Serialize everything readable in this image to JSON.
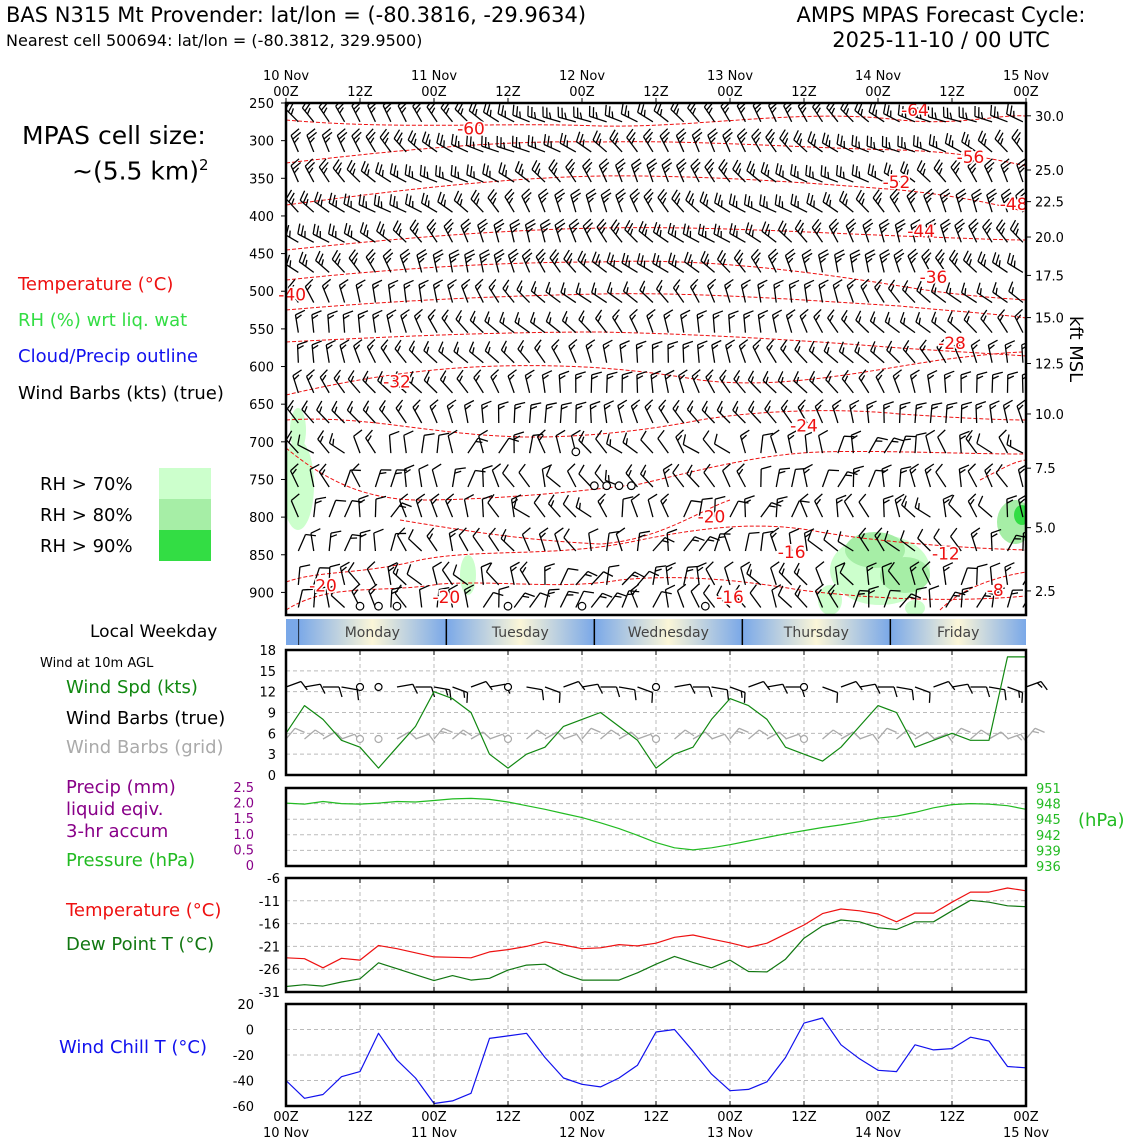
{
  "header": {
    "station_title": "BAS N315 Mt Provender: lat/lon = (-80.3816, -29.9634)",
    "cell_subtitle": "Nearest cell 500694: lat/lon = (-80.3812, 329.9500)",
    "cycle_line1": "AMPS MPAS Forecast Cycle:",
    "cycle_line2": "2025-11-10 / 00 UTC"
  },
  "legend": {
    "cell_size_label": "MPAS cell size:",
    "cell_size_value": "~(5.5 km)",
    "cell_size_exp": "2",
    "temperature": "Temperature (°C)",
    "rh": "RH (%) wrt liq. wat",
    "cloud": "Cloud/Precip outline",
    "wind_barbs": "Wind Barbs (kts) (true)",
    "rh_levels": [
      {
        "label": "RH > 70%",
        "color": "#ccffcc"
      },
      {
        "label": "RH > 80%",
        "color": "#a6eea6"
      },
      {
        "label": "RH > 90%",
        "color": "#33dd44"
      }
    ],
    "local_weekday": "Local Weekday",
    "wind_10m": "Wind at 10m AGL",
    "wind_spd": "Wind Spd (kts)",
    "wind_barbs_true": "Wind Barbs (true)",
    "wind_barbs_grid": "Wind Barbs (grid)",
    "precip_line1": "Precip (mm)",
    "precip_line2": "liquid eqiv.",
    "precip_line3": "3-hr accum",
    "pressure": "Pressure (hPa)",
    "temperature_ts": "Temperature (°C)",
    "dewpoint": "Dew Point T (°C)",
    "windchill": "Wind Chill T (°C)",
    "kft_label": "kft MSL",
    "hpa_label": "(hPa)"
  },
  "colors": {
    "temperature": "#ee1111",
    "rh": "#33dd44",
    "cloud": "#1111ee",
    "wind_spd": "#118811",
    "grid_barb": "#aaaaaa",
    "precip": "#880088",
    "pressure": "#22bb22",
    "dewpoint": "#117711",
    "windchill": "#1111ee"
  },
  "chart_data": [
    {
      "type": "cross-section",
      "name": "upper-air",
      "x_ticks": [
        {
          "top": "10 Nov",
          "bottom": "00Z"
        },
        {
          "top": "",
          "bottom": "12Z"
        },
        {
          "top": "11 Nov",
          "bottom": "00Z"
        },
        {
          "top": "",
          "bottom": "12Z"
        },
        {
          "top": "12 Nov",
          "bottom": "00Z"
        },
        {
          "top": "",
          "bottom": "12Z"
        },
        {
          "top": "13 Nov",
          "bottom": "00Z"
        },
        {
          "top": "",
          "bottom": "12Z"
        },
        {
          "top": "14 Nov",
          "bottom": "00Z"
        },
        {
          "top": "",
          "bottom": "12Z"
        },
        {
          "top": "15 Nov",
          "bottom": "00Z"
        }
      ],
      "x_range_hours": [
        0,
        120
      ],
      "y_range_hpa": [
        250,
        930
      ],
      "pressure_ticks": [
        "250",
        "300",
        "350",
        "400",
        "450",
        "500",
        "550",
        "600",
        "650",
        "700",
        "750",
        "800",
        "850",
        "900"
      ],
      "kft_ticks": [
        {
          "label": "30.0",
          "p": 267
        },
        {
          "label": "25.0",
          "p": 339
        },
        {
          "label": "22.5",
          "p": 381
        },
        {
          "label": "20.0",
          "p": 428
        },
        {
          "label": "17.5",
          "p": 479
        },
        {
          "label": "15.0",
          "p": 535
        },
        {
          "label": "12.5",
          "p": 596
        },
        {
          "label": "10.0",
          "p": 663
        },
        {
          "label": "7.5",
          "p": 735
        },
        {
          "label": "5.0",
          "p": 814
        },
        {
          "label": "2.5",
          "p": 898
        }
      ],
      "isotherm_labels": [
        {
          "label": "-64",
          "t": 102,
          "p": 267
        },
        {
          "label": "-60",
          "t": 30,
          "p": 292
        },
        {
          "label": "-56",
          "t": 111,
          "p": 330
        },
        {
          "label": "-52",
          "t": 99,
          "p": 363
        },
        {
          "label": "-48",
          "t": 118,
          "p": 392
        },
        {
          "label": "-44",
          "t": 103,
          "p": 428
        },
        {
          "label": "-36",
          "t": 105,
          "p": 489
        },
        {
          "label": "-40",
          "t": 1,
          "p": 512
        },
        {
          "label": "-28",
          "t": 108,
          "p": 577
        },
        {
          "label": "-32",
          "t": 18,
          "p": 628
        },
        {
          "label": "-24",
          "t": 84,
          "p": 686
        },
        {
          "label": "-20",
          "t": 69,
          "p": 807
        },
        {
          "label": "-16",
          "t": 82,
          "p": 854
        },
        {
          "label": "-12",
          "t": 107,
          "p": 856
        },
        {
          "label": "-20",
          "t": 6,
          "p": 899
        },
        {
          "label": "-20",
          "t": 26,
          "p": 914
        },
        {
          "label": "-16",
          "t": 72,
          "p": 914
        },
        {
          "label": "-8",
          "t": 115,
          "p": 905
        }
      ],
      "weekdays": [
        "Monday",
        "Tuesday",
        "Wednesday",
        "Thursday",
        "Friday"
      ],
      "weekday_start_hour": 2
    },
    {
      "type": "line",
      "name": "wind-speed",
      "title": "Wind Spd (kts)",
      "x_hours": [
        0,
        3,
        6,
        9,
        12,
        15,
        18,
        21,
        24,
        27,
        30,
        33,
        36,
        39,
        42,
        45,
        48,
        51,
        54,
        57,
        60,
        63,
        66,
        69,
        72,
        75,
        78,
        81,
        84,
        87,
        90,
        93,
        96,
        99,
        102,
        105,
        108,
        111,
        114,
        117,
        120
      ],
      "values": [
        6,
        10,
        8,
        5,
        4,
        1,
        4,
        7,
        12,
        11,
        9,
        3,
        1,
        3,
        4,
        7,
        8,
        9,
        7,
        5,
        1,
        3,
        4,
        8,
        11,
        10,
        8,
        4,
        3,
        2,
        4,
        7,
        10,
        9,
        4,
        5,
        6,
        5,
        5,
        17,
        17
      ],
      "ylim": [
        0,
        18
      ],
      "yticks": [
        "0",
        "3",
        "6",
        "9",
        "12",
        "15",
        "18"
      ]
    },
    {
      "type": "line",
      "name": "precip-pressure",
      "series": [
        {
          "name": "Pressure (hPa)",
          "x_hours": [
            0,
            3,
            6,
            9,
            12,
            15,
            18,
            21,
            24,
            27,
            30,
            33,
            36,
            39,
            42,
            45,
            48,
            51,
            54,
            57,
            60,
            63,
            66,
            69,
            72,
            75,
            78,
            81,
            84,
            87,
            90,
            93,
            96,
            99,
            102,
            105,
            108,
            111,
            114,
            117,
            120
          ],
          "values": [
            948.1,
            947.9,
            948.4,
            948.0,
            947.9,
            948.1,
            948.4,
            948.3,
            948.6,
            948.9,
            949.0,
            948.8,
            948.3,
            947.6,
            946.9,
            946.1,
            945.3,
            944.3,
            943.2,
            941.9,
            940.5,
            939.5,
            939.1,
            939.5,
            940.1,
            940.8,
            941.5,
            942.2,
            942.8,
            943.4,
            943.9,
            944.5,
            945.2,
            945.6,
            946.3,
            947.2,
            947.8,
            948.0,
            947.9,
            947.6,
            946.9
          ]
        }
      ],
      "precip_ylim": [
        0,
        2.5
      ],
      "precip_ticks": [
        "0",
        "0.5",
        "1.0",
        "1.5",
        "2.0",
        "2.5"
      ],
      "pressure_ylim": [
        936,
        951
      ],
      "pressure_ticks": [
        "936",
        "939",
        "942",
        "945",
        "948",
        "951"
      ]
    },
    {
      "type": "line",
      "name": "temperature-dewpoint",
      "x_hours": [
        0,
        3,
        6,
        9,
        12,
        15,
        18,
        21,
        24,
        27,
        30,
        33,
        36,
        39,
        42,
        45,
        48,
        51,
        54,
        57,
        60,
        63,
        66,
        69,
        72,
        75,
        78,
        81,
        84,
        87,
        90,
        93,
        96,
        99,
        102,
        105,
        108,
        111,
        114,
        117,
        120
      ],
      "series": [
        {
          "name": "Temperature (°C)",
          "values": [
            -23.5,
            -23.7,
            -25.7,
            -23.6,
            -24.0,
            -20.8,
            -21.5,
            -22.4,
            -23.3,
            -23.4,
            -23.5,
            -22.2,
            -21.7,
            -21.0,
            -20.0,
            -20.7,
            -21.5,
            -21.3,
            -20.6,
            -20.9,
            -20.3,
            -19.0,
            -18.5,
            -19.4,
            -20.2,
            -21.2,
            -20.3,
            -18.3,
            -16.3,
            -13.8,
            -12.8,
            -13.2,
            -13.9,
            -15.6,
            -13.7,
            -13.7,
            -11.3,
            -9.1,
            -9.1,
            -8.2,
            -8.8
          ]
        },
        {
          "name": "Dew Point T (°C)",
          "values": [
            -29.8,
            -29.4,
            -29.7,
            -28.8,
            -28.1,
            -24.6,
            -25.9,
            -27.2,
            -28.5,
            -27.4,
            -28.4,
            -28.0,
            -26.2,
            -25.1,
            -24.9,
            -27.0,
            -28.4,
            -28.4,
            -28.4,
            -26.8,
            -24.9,
            -23.2,
            -24.5,
            -25.7,
            -24.0,
            -26.5,
            -26.6,
            -23.8,
            -19.2,
            -16.5,
            -15.2,
            -15.6,
            -16.9,
            -17.3,
            -15.6,
            -15.6,
            -13.2,
            -10.9,
            -11.3,
            -12.1,
            -12.3
          ]
        }
      ],
      "ylim": [
        -31,
        -6
      ],
      "yticks": [
        "-31",
        "-26",
        "-21",
        "-16",
        "-11",
        "-6"
      ]
    },
    {
      "type": "line",
      "name": "wind-chill",
      "title": "Wind Chill T (°C)",
      "x_hours": [
        0,
        3,
        6,
        9,
        12,
        15,
        18,
        21,
        24,
        27,
        30,
        33,
        36,
        39,
        42,
        45,
        48,
        51,
        54,
        57,
        60,
        63,
        66,
        69,
        72,
        75,
        78,
        81,
        84,
        87,
        90,
        93,
        96,
        99,
        102,
        105,
        108,
        111,
        114,
        117,
        120
      ],
      "values": [
        -40,
        -54,
        -51,
        -37,
        -33,
        -3,
        -24,
        -38,
        -58,
        -56,
        -50,
        -7,
        -5,
        -3,
        -22,
        -38,
        -43,
        -45,
        -38,
        -28,
        -2,
        0,
        -17,
        -35,
        -48,
        -47,
        -41,
        -22,
        5,
        9,
        -12,
        -23,
        -32,
        -33,
        -12,
        -16,
        -15,
        -6,
        -9,
        -29,
        -30
      ],
      "ylim": [
        -60,
        20
      ],
      "yticks": [
        "-60",
        "-40",
        "-20",
        "0",
        "20"
      ],
      "x_ticks_bottom": [
        {
          "hour": "00Z",
          "date": "10 Nov"
        },
        {
          "hour": "12Z",
          "date": ""
        },
        {
          "hour": "00Z",
          "date": "11 Nov"
        },
        {
          "hour": "12Z",
          "date": ""
        },
        {
          "hour": "00Z",
          "date": "12 Nov"
        },
        {
          "hour": "12Z",
          "date": ""
        },
        {
          "hour": "00Z",
          "date": "13 Nov"
        },
        {
          "hour": "12Z",
          "date": ""
        },
        {
          "hour": "00Z",
          "date": "14 Nov"
        },
        {
          "hour": "12Z",
          "date": ""
        },
        {
          "hour": "00Z",
          "date": "15 Nov"
        }
      ]
    }
  ]
}
